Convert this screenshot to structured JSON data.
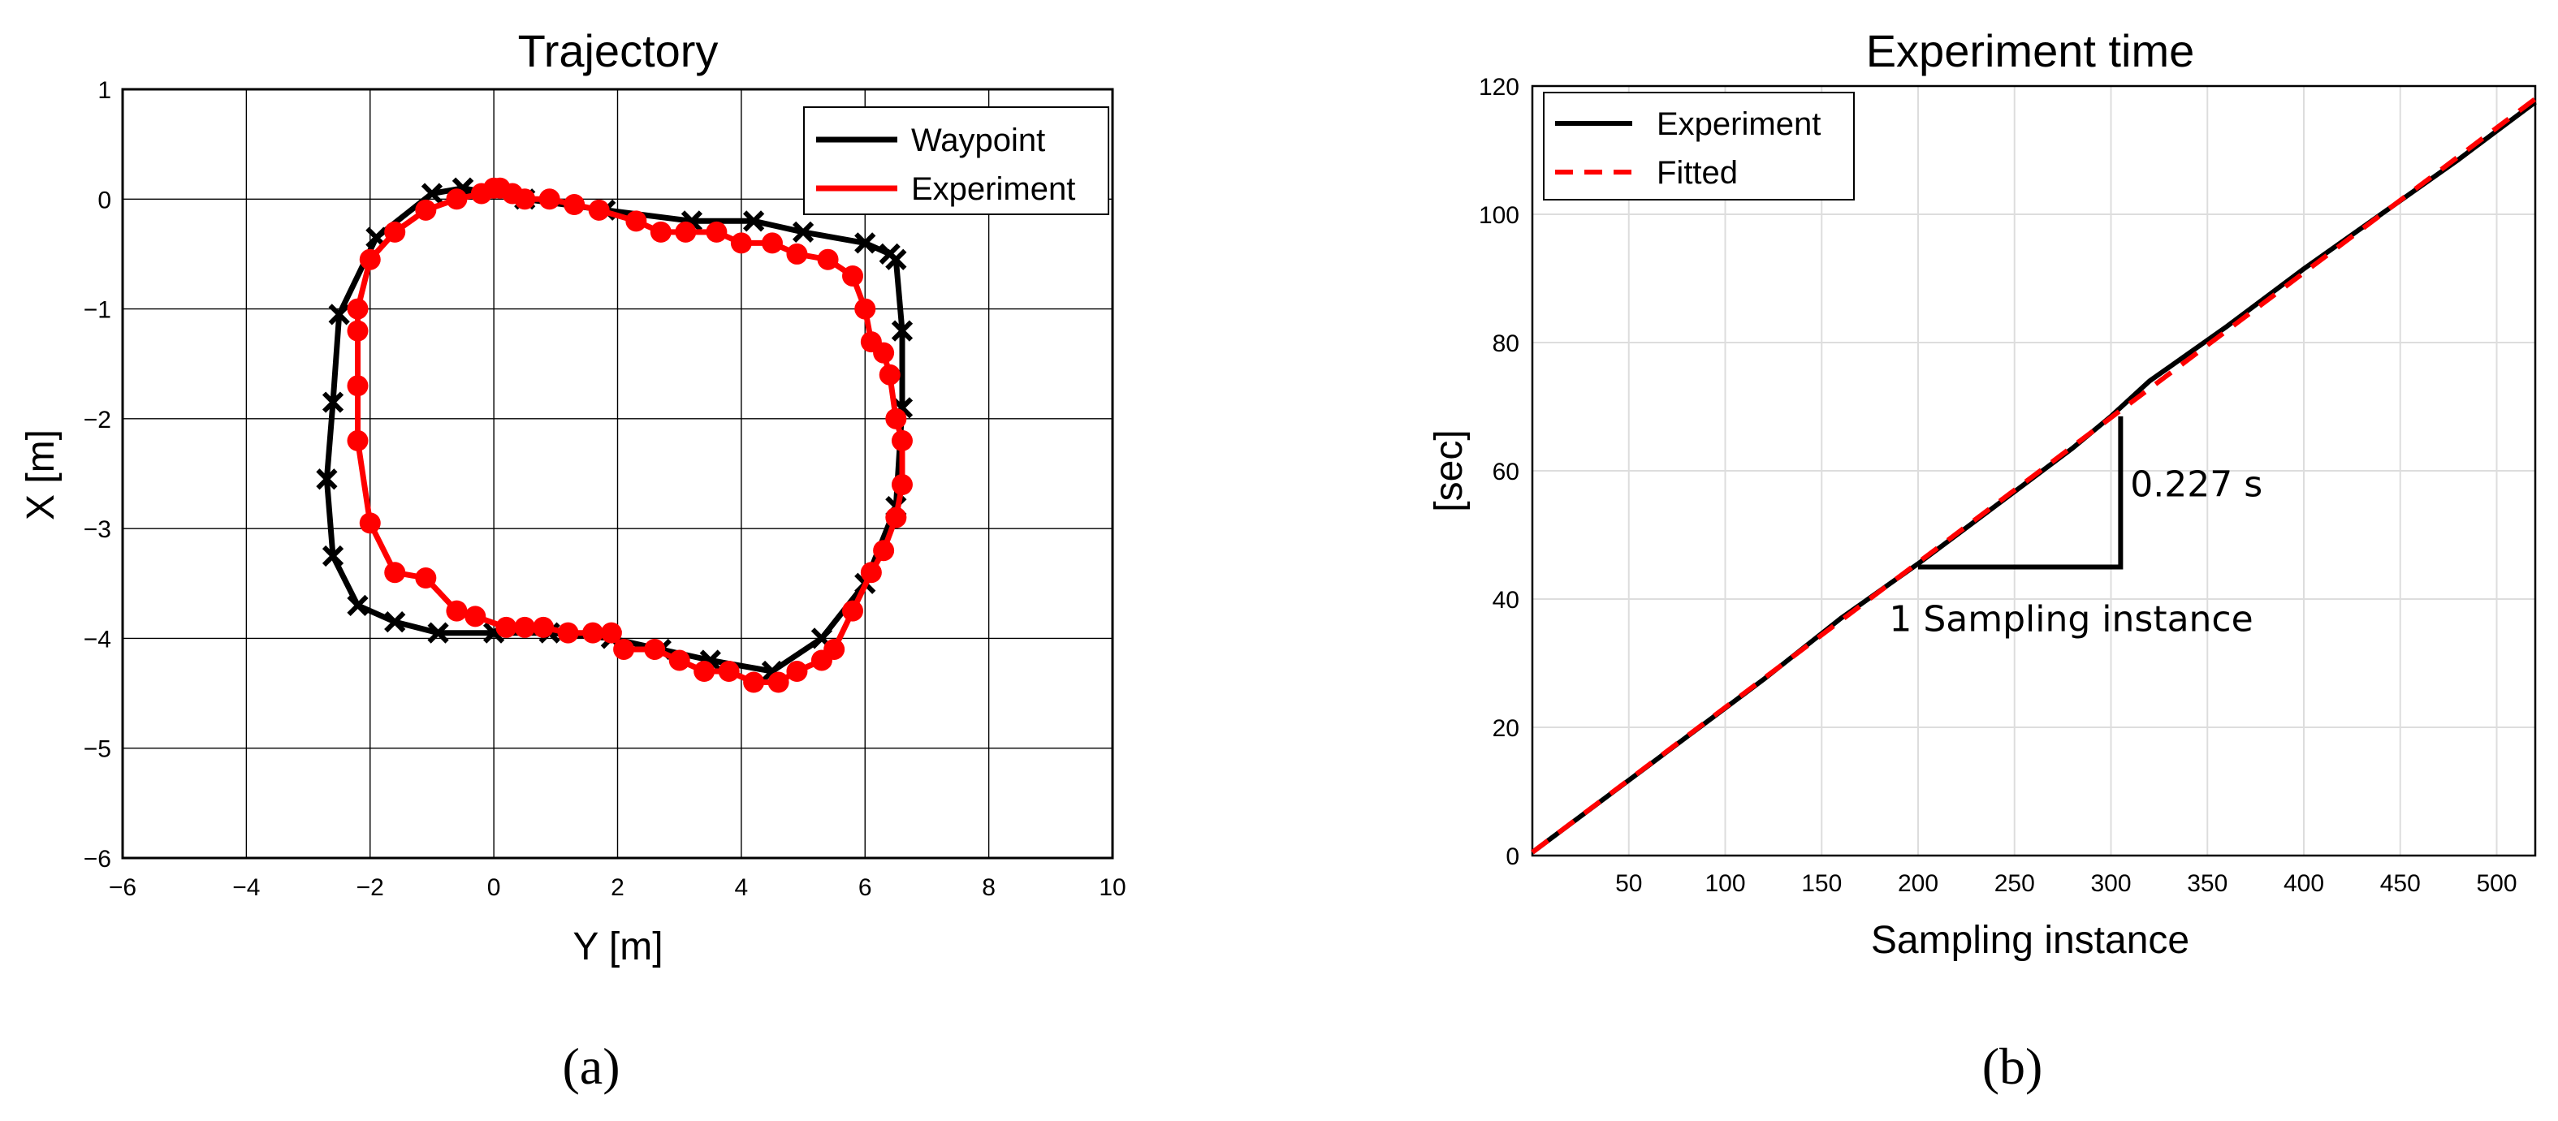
{
  "chart_data": [
    {
      "type": "line",
      "panel_label": "(a)",
      "title": "Trajectory",
      "xlabel": "Y [m]",
      "ylabel": "X [m]",
      "xlim": [
        -6,
        10
      ],
      "ylim": [
        -6,
        1
      ],
      "xticks": [
        "−6",
        "−4",
        "−2",
        "0",
        "2",
        "4",
        "6",
        "8",
        "10"
      ],
      "yticks": [
        "1",
        "0",
        "−1",
        "−2",
        "−3",
        "−4",
        "−5",
        "−6"
      ],
      "grid": true,
      "legend_position": "top-right",
      "series": [
        {
          "name": "Waypoint",
          "color": "#000000",
          "marker": "x",
          "x": [
            -0.5,
            -1.0,
            -1.9,
            -2.5,
            -2.6,
            -2.7,
            -2.6,
            -2.2,
            -1.6,
            -0.9,
            0.0,
            0.9,
            1.9,
            2.7,
            3.5,
            4.5,
            5.3,
            6.0,
            6.5,
            6.6,
            6.6,
            6.5,
            6.4,
            6.0,
            5.0,
            4.2,
            3.2,
            1.8,
            0.5,
            -0.5
          ],
          "y": [
            0.1,
            0.05,
            -0.35,
            -1.05,
            -1.85,
            -2.55,
            -3.25,
            -3.7,
            -3.85,
            -3.95,
            -3.95,
            -3.95,
            -4.0,
            -4.1,
            -4.2,
            -4.3,
            -4.0,
            -3.5,
            -2.8,
            -1.9,
            -1.2,
            -0.55,
            -0.5,
            -0.4,
            -0.3,
            -0.2,
            -0.2,
            -0.1,
            0.0,
            0.1
          ]
        },
        {
          "name": "Experiment",
          "color": "#ff0000",
          "marker": "o",
          "x": [
            0.1,
            0.3,
            0.5,
            0.9,
            1.3,
            1.7,
            2.3,
            2.7,
            3.1,
            3.6,
            4.0,
            4.5,
            4.9,
            5.4,
            5.8,
            6.0,
            6.1,
            6.3,
            6.4,
            6.5,
            6.6,
            6.6,
            6.5,
            6.3,
            6.1,
            5.8,
            5.5,
            5.3,
            4.9,
            4.6,
            4.2,
            3.8,
            3.4,
            3.0,
            2.6,
            2.1,
            1.9,
            1.6,
            1.2,
            0.8,
            0.5,
            0.2,
            -0.3,
            -0.6,
            -1.1,
            -1.6,
            -2.0,
            -2.2,
            -2.2,
            -2.2,
            -2.2,
            -2.0,
            -1.6,
            -1.1,
            -0.6,
            -0.2,
            0.0
          ],
          "y": [
            0.1,
            0.05,
            0.0,
            0.0,
            -0.05,
            -0.1,
            -0.2,
            -0.3,
            -0.3,
            -0.3,
            -0.4,
            -0.4,
            -0.5,
            -0.55,
            -0.7,
            -1.0,
            -1.3,
            -1.4,
            -1.6,
            -2.0,
            -2.2,
            -2.6,
            -2.9,
            -3.2,
            -3.4,
            -3.75,
            -4.1,
            -4.2,
            -4.3,
            -4.4,
            -4.4,
            -4.3,
            -4.3,
            -4.2,
            -4.1,
            -4.1,
            -3.95,
            -3.95,
            -3.95,
            -3.9,
            -3.9,
            -3.9,
            -3.8,
            -3.75,
            -3.45,
            -3.4,
            -2.95,
            -2.2,
            -1.7,
            -1.2,
            -1.0,
            -0.55,
            -0.3,
            -0.1,
            0.0,
            0.05,
            0.1
          ]
        }
      ]
    },
    {
      "type": "line",
      "panel_label": "(b)",
      "title": "Experiment time",
      "xlabel": "Sampling instance",
      "ylabel": "[sec]",
      "xlim": [
        0,
        520
      ],
      "ylim": [
        0,
        120
      ],
      "xticks": [
        "50",
        "100",
        "150",
        "200",
        "250",
        "300",
        "350",
        "400",
        "450",
        "500"
      ],
      "yticks": [
        "0",
        "20",
        "40",
        "60",
        "80",
        "100",
        "120"
      ],
      "grid": true,
      "legend_position": "top-left",
      "series": [
        {
          "name": "Experiment",
          "color": "#000000",
          "style": "solid",
          "x": [
            0,
            40,
            80,
            120,
            160,
            200,
            240,
            280,
            300,
            320,
            360,
            400,
            440,
            480,
            520
          ],
          "y": [
            0.5,
            9.5,
            18.5,
            27.5,
            37,
            45.5,
            54.5,
            63.5,
            68.5,
            74,
            82.5,
            91.5,
            100,
            108.5,
            117.5
          ]
        },
        {
          "name": "Fitted",
          "color": "#ff0000",
          "style": "dashed",
          "x": [
            0,
            520
          ],
          "y": [
            0.5,
            118
          ]
        }
      ],
      "annotations": [
        {
          "text": "0.227 s",
          "anchor_x": 310,
          "anchor_y": 56,
          "bracket": {
            "x_start": 200,
            "x_end": 305,
            "y_low": 45,
            "y_high": 68.5
          }
        },
        {
          "text": "1 Sampling instance",
          "anchor_x": 185,
          "anchor_y": 35
        }
      ]
    }
  ]
}
